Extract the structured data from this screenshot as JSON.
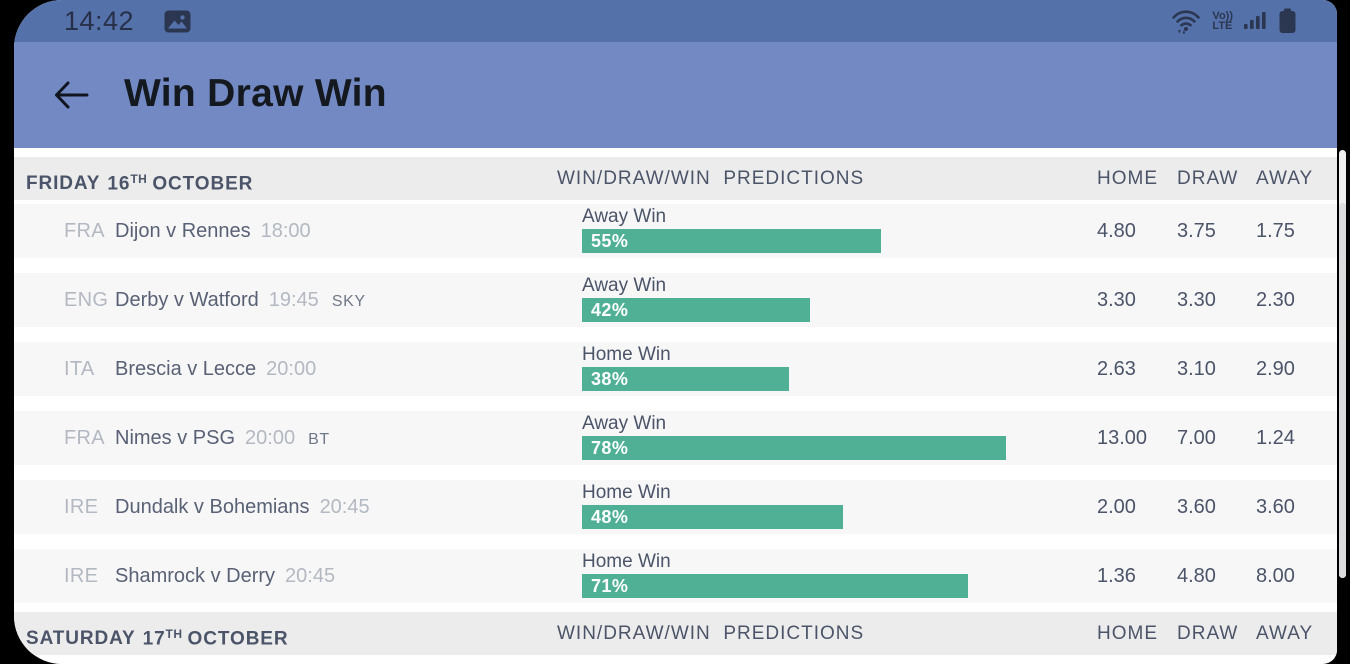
{
  "status_bar": {
    "time": "14:42",
    "volte_line1": "Vo))",
    "volte_line2": "LTE"
  },
  "app_bar": {
    "title": "Win Draw Win"
  },
  "columns": {
    "predictions": "WIN/DRAW/WIN  PREDICTIONS",
    "home": "HOME",
    "draw": "DRAW",
    "away": "AWAY"
  },
  "sections": [
    {
      "date": {
        "day": "FRIDAY",
        "num": "16",
        "ordinal": "TH",
        "month": "OCTOBER"
      },
      "matches": [
        {
          "country": "FRA",
          "fixture": "Dijon v Rennes",
          "time": "18:00",
          "tv": "",
          "prediction": "Away Win",
          "percent": 55,
          "percent_label": "55%",
          "home": "4.80",
          "draw": "3.75",
          "away": "1.75"
        },
        {
          "country": "ENG",
          "fixture": "Derby v Watford",
          "time": "19:45",
          "tv": "SKY",
          "prediction": "Away Win",
          "percent": 42,
          "percent_label": "42%",
          "home": "3.30",
          "draw": "3.30",
          "away": "2.30"
        },
        {
          "country": "ITA",
          "fixture": "Brescia v Lecce",
          "time": "20:00",
          "tv": "",
          "prediction": "Home Win",
          "percent": 38,
          "percent_label": "38%",
          "home": "2.63",
          "draw": "3.10",
          "away": "2.90"
        },
        {
          "country": "FRA",
          "fixture": "Nimes v PSG",
          "time": "20:00",
          "tv": "BT",
          "prediction": "Away Win",
          "percent": 78,
          "percent_label": "78%",
          "home": "13.00",
          "draw": "7.00",
          "away": "1.24"
        },
        {
          "country": "IRE",
          "fixture": "Dundalk v Bohemians",
          "time": "20:45",
          "tv": "",
          "prediction": "Home Win",
          "percent": 48,
          "percent_label": "48%",
          "home": "2.00",
          "draw": "3.60",
          "away": "3.60"
        },
        {
          "country": "IRE",
          "fixture": "Shamrock v Derry",
          "time": "20:45",
          "tv": "",
          "prediction": "Home Win",
          "percent": 71,
          "percent_label": "71%",
          "home": "1.36",
          "draw": "4.80",
          "away": "8.00"
        }
      ]
    },
    {
      "date": {
        "day": "SATURDAY",
        "num": "17",
        "ordinal": "TH",
        "month": "OCTOBER"
      },
      "matches": []
    }
  ],
  "colors": {
    "status_bar_blue": "#5571aa",
    "app_bar_blue": "#7289c4",
    "prediction_bar_teal": "#4fb096",
    "section_header_gray": "#ececec",
    "row_gray": "#f7f7f8"
  }
}
